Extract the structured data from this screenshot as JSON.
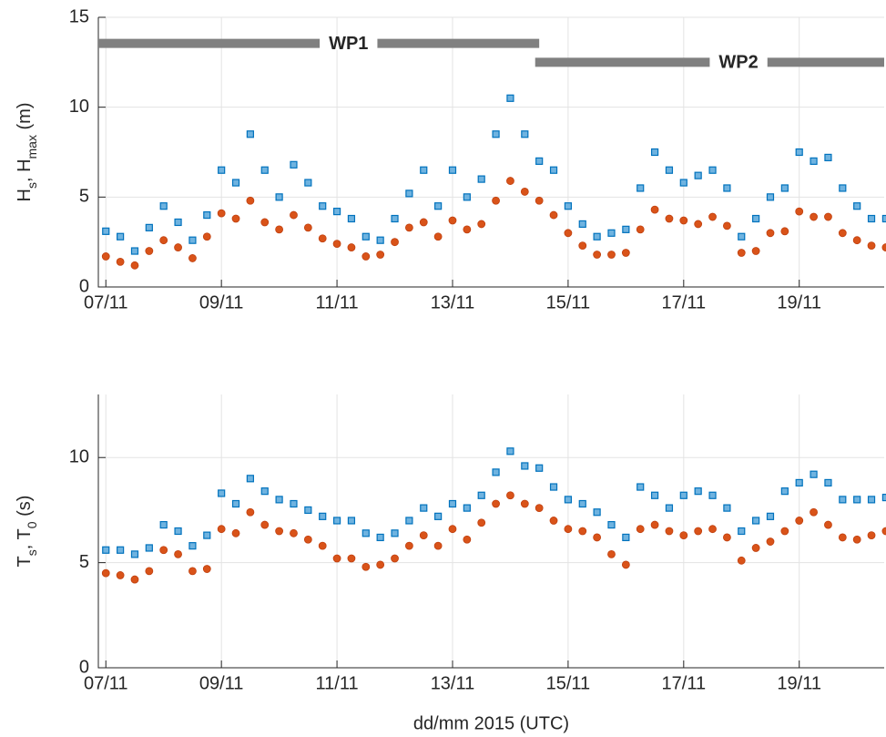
{
  "chart_data": [
    {
      "type": "scatter",
      "ylabel": [
        "H",
        "s",
        ", H",
        "max",
        " (m)"
      ],
      "x": [
        7.0,
        7.25,
        7.5,
        7.75,
        8.0,
        8.25,
        8.5,
        8.75,
        9.0,
        9.25,
        9.5,
        9.75,
        10.0,
        10.25,
        10.5,
        10.75,
        11.0,
        11.25,
        11.5,
        11.75,
        12.0,
        12.25,
        12.5,
        12.75,
        13.0,
        13.25,
        13.5,
        13.75,
        14.0,
        14.25,
        14.5,
        14.75,
        15.0,
        15.25,
        15.5,
        15.75,
        16.0,
        16.25,
        16.5,
        16.75,
        17.0,
        17.25,
        17.5,
        17.75,
        18.0,
        18.25,
        18.5,
        18.75,
        19.0,
        19.25,
        19.5,
        19.75,
        20.0,
        20.25,
        20.5
      ],
      "series": [
        {
          "color": "#0072bd",
          "marker": "square",
          "values": [
            3.1,
            2.8,
            2.0,
            3.3,
            4.5,
            3.6,
            2.6,
            4.0,
            6.5,
            5.8,
            8.5,
            6.5,
            5.0,
            6.8,
            5.8,
            4.5,
            4.2,
            3.8,
            2.8,
            2.6,
            3.8,
            5.2,
            6.5,
            4.5,
            6.5,
            5.0,
            6.0,
            8.5,
            10.5,
            8.5,
            7.0,
            6.5,
            4.5,
            3.5,
            2.8,
            3.0,
            3.2,
            5.5,
            7.5,
            6.5,
            5.8,
            6.2,
            6.5,
            5.5,
            2.8,
            3.8,
            5.0,
            5.5,
            7.5,
            7.0,
            7.2,
            5.5,
            4.5,
            3.8,
            3.8
          ]
        },
        {
          "color": "#d95319",
          "marker": "circle",
          "values": [
            1.7,
            1.4,
            1.2,
            2.0,
            2.6,
            2.2,
            1.6,
            2.8,
            4.1,
            3.8,
            4.8,
            3.6,
            3.2,
            4.0,
            3.3,
            2.7,
            2.4,
            2.2,
            1.7,
            1.8,
            2.5,
            3.3,
            3.6,
            2.8,
            3.7,
            3.2,
            3.5,
            4.8,
            5.9,
            5.3,
            4.8,
            4.0,
            3.0,
            2.3,
            1.8,
            1.8,
            1.9,
            3.2,
            4.3,
            3.8,
            3.7,
            3.5,
            3.9,
            3.4,
            1.9,
            2.0,
            3.0,
            3.1,
            4.2,
            3.9,
            3.9,
            3.0,
            2.6,
            2.3,
            2.2
          ]
        }
      ],
      "xlim": [
        6.87,
        20.47
      ],
      "xticks": [
        {
          "value": 7,
          "label": "07/11"
        },
        {
          "value": 9,
          "label": "09/11"
        },
        {
          "value": 11,
          "label": "11/11"
        },
        {
          "value": 13,
          "label": "13/11"
        },
        {
          "value": 15,
          "label": "15/11"
        },
        {
          "value": 17,
          "label": "17/11"
        },
        {
          "value": 19,
          "label": "19/11"
        }
      ],
      "ylim": [
        0,
        15
      ],
      "yticks": [
        0,
        5,
        10,
        15
      ],
      "grid": true,
      "annotations": [
        {
          "text": "WP1",
          "x": [
            6.87,
            14.5
          ],
          "y": 13.55,
          "text_x": 11.2
        },
        {
          "text": "WP2",
          "x": [
            14.43,
            20.47
          ],
          "y": 12.5,
          "text_x": 17.95
        }
      ]
    },
    {
      "type": "scatter",
      "ylabel": [
        "T",
        "s",
        ", T",
        "0",
        " (s)"
      ],
      "xlabel": "dd/mm 2015 (UTC)",
      "x": [
        7.0,
        7.25,
        7.5,
        7.75,
        8.0,
        8.25,
        8.5,
        8.75,
        9.0,
        9.25,
        9.5,
        9.75,
        10.0,
        10.25,
        10.5,
        10.75,
        11.0,
        11.25,
        11.5,
        11.75,
        12.0,
        12.25,
        12.5,
        12.75,
        13.0,
        13.25,
        13.5,
        13.75,
        14.0,
        14.25,
        14.5,
        14.75,
        15.0,
        15.25,
        15.5,
        15.75,
        16.0,
        16.25,
        16.5,
        16.75,
        17.0,
        17.25,
        17.5,
        17.75,
        18.0,
        18.25,
        18.5,
        18.75,
        19.0,
        19.25,
        19.5,
        19.75,
        20.0,
        20.25,
        20.5
      ],
      "series": [
        {
          "color": "#0072bd",
          "marker": "square",
          "values": [
            5.6,
            5.6,
            5.4,
            5.7,
            6.8,
            6.5,
            5.8,
            6.3,
            8.3,
            7.8,
            9.0,
            8.4,
            8.0,
            7.8,
            7.5,
            7.2,
            7.0,
            7.0,
            6.4,
            6.2,
            6.4,
            7.0,
            7.6,
            7.2,
            7.8,
            7.6,
            8.2,
            9.3,
            10.3,
            9.6,
            9.5,
            8.6,
            8.0,
            7.8,
            7.4,
            6.8,
            6.2,
            8.6,
            8.2,
            7.6,
            8.2,
            8.4,
            8.2,
            7.6,
            6.5,
            7.0,
            7.2,
            8.4,
            8.8,
            9.2,
            8.8,
            8.0,
            8.0,
            8.0,
            8.1
          ]
        },
        {
          "color": "#d95319",
          "marker": "circle",
          "values": [
            4.5,
            4.4,
            4.2,
            4.6,
            5.6,
            5.4,
            4.6,
            4.7,
            6.6,
            6.4,
            7.4,
            6.8,
            6.5,
            6.4,
            6.1,
            5.8,
            5.2,
            5.2,
            4.8,
            4.9,
            5.2,
            5.8,
            6.3,
            5.8,
            6.6,
            6.1,
            6.9,
            7.8,
            8.2,
            7.8,
            7.6,
            7.0,
            6.6,
            6.5,
            6.2,
            5.4,
            4.9,
            6.6,
            6.8,
            6.5,
            6.3,
            6.5,
            6.6,
            6.2,
            5.1,
            5.7,
            6.0,
            6.5,
            7.0,
            7.4,
            6.8,
            6.2,
            6.1,
            6.3,
            6.5
          ]
        }
      ],
      "xlim": [
        6.87,
        20.47
      ],
      "xticks": [
        {
          "value": 7,
          "label": "07/11"
        },
        {
          "value": 9,
          "label": "09/11"
        },
        {
          "value": 11,
          "label": "11/11"
        },
        {
          "value": 13,
          "label": "13/11"
        },
        {
          "value": 15,
          "label": "15/11"
        },
        {
          "value": 17,
          "label": "17/11"
        },
        {
          "value": 19,
          "label": "19/11"
        }
      ],
      "ylim": [
        0,
        13
      ],
      "yticks": [
        0,
        5,
        10
      ],
      "grid": true
    }
  ]
}
